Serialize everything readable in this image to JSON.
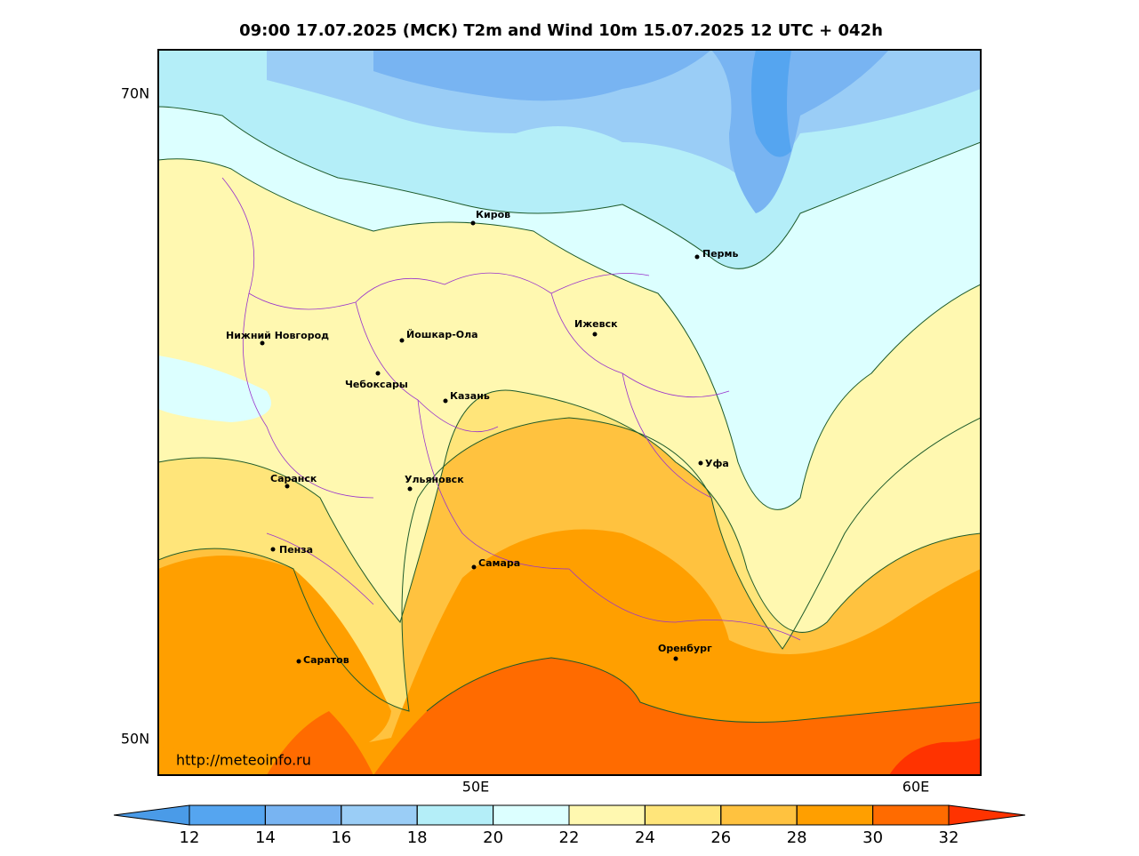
{
  "title": "09:00 17.07.2025 (МСК) T2m and Wind 10m 15.07.2025 12 UTC + 042h",
  "lat_labels": [
    "70N",
    "50N"
  ],
  "lon_labels": [
    "50E",
    "60E"
  ],
  "cities": [
    "Киров",
    "Пермь",
    "Нижний Новгород",
    "Йошкар-Ола",
    "Ижевск",
    "Чебоксары",
    "Казань",
    "Уфа",
    "Саранск",
    "Ульяновск",
    "Пенза",
    "Самара",
    "Оренбург",
    "Саратов"
  ],
  "watermark": "http://meteoinfo.ru",
  "colorbar": {
    "ticks": [
      12,
      14,
      16,
      18,
      20,
      22,
      24,
      26,
      28,
      30,
      32
    ],
    "colors": [
      "#4a9be8",
      "#55a5f0",
      "#78b4f2",
      "#9acdf6",
      "#b4eef8",
      "#dcffff",
      "#fff8b0",
      "#ffe57a",
      "#ffc23f",
      "#ff9f00",
      "#ff6b00",
      "#ff3300"
    ]
  }
}
